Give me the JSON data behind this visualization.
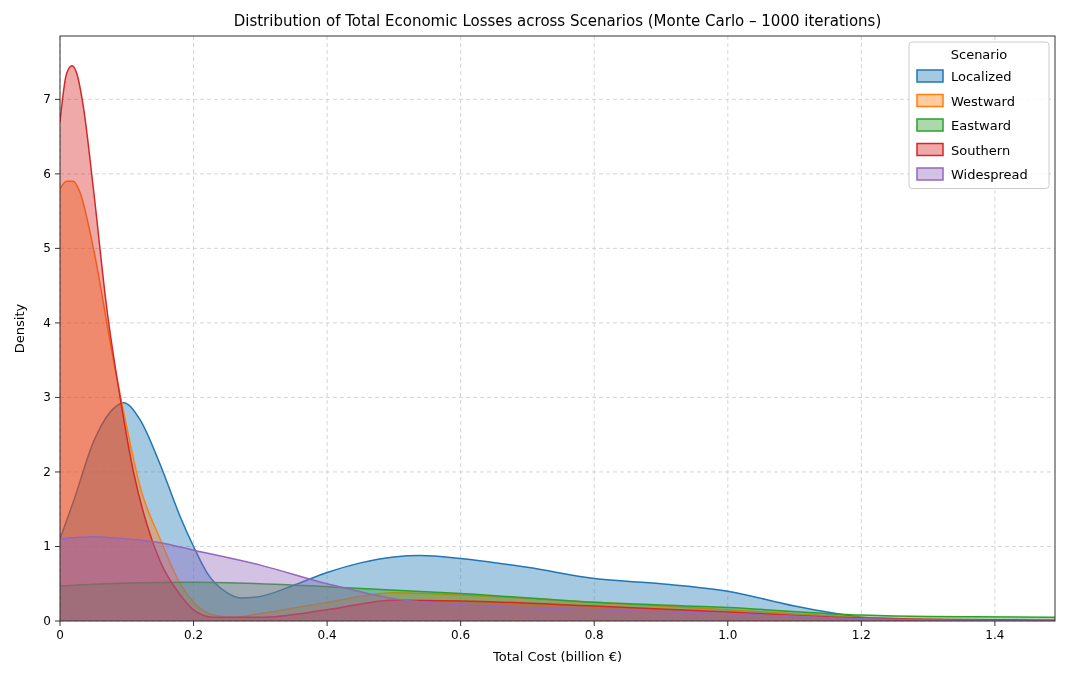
{
  "chart_data": {
    "type": "area",
    "title": "Distribution of Total Economic Losses across Scenarios (Monte Carlo – 1000 iterations)",
    "xlabel": "Total Cost (billion €)",
    "ylabel": "Density",
    "legend_title": "Scenario",
    "legend": "top right",
    "grid": true,
    "xlim": [
      0,
      1.49
    ],
    "xticks": [
      0,
      {
        "value": 0.2,
        "label": "0.2"
      },
      {
        "value": 0.4,
        "label": "0.4"
      },
      {
        "value": 0.6,
        "label": "0.6"
      },
      {
        "value": 0.8,
        "label": "0.8"
      },
      {
        "value": 1,
        "label": "1.0"
      },
      {
        "value": 1.2,
        "label": "1.2"
      },
      {
        "value": 1.4,
        "label": "1.4"
      }
    ],
    "ylim": [
      0,
      7.85
    ],
    "yticks": [
      0,
      1,
      2,
      3,
      4,
      5,
      6,
      7
    ],
    "series": [
      {
        "name": "Localized",
        "color": "#1f77b4",
        "x": [
          0,
          0.02,
          0.05,
          0.08,
          0.095,
          0.12,
          0.15,
          0.18,
          0.2,
          0.22,
          0.25,
          0.27,
          0.3,
          0.35,
          0.4,
          0.45,
          0.5,
          0.54,
          0.6,
          0.7,
          0.8,
          0.9,
          1.0,
          1.1,
          1.2,
          1.25,
          1.3,
          1.49
        ],
        "values": [
          1.1,
          1.6,
          2.4,
          2.85,
          2.93,
          2.7,
          2.1,
          1.4,
          1.0,
          0.65,
          0.38,
          0.31,
          0.33,
          0.48,
          0.65,
          0.78,
          0.86,
          0.88,
          0.84,
          0.72,
          0.57,
          0.5,
          0.4,
          0.2,
          0.05,
          0.01,
          0,
          0
        ]
      },
      {
        "name": "Westward",
        "color": "#ff7f0e",
        "x": [
          0,
          0.01,
          0.02,
          0.03,
          0.05,
          0.08,
          0.1,
          0.12,
          0.15,
          0.18,
          0.2,
          0.23,
          0.26,
          0.3,
          0.4,
          0.5,
          0.6,
          0.8,
          1.0,
          1.2,
          1.3,
          1.49
        ],
        "values": [
          5.8,
          5.9,
          5.9,
          5.75,
          5.0,
          3.5,
          2.6,
          1.8,
          1.1,
          0.5,
          0.25,
          0.08,
          0.05,
          0.1,
          0.25,
          0.38,
          0.35,
          0.25,
          0.15,
          0.05,
          0.02,
          0.01
        ]
      },
      {
        "name": "Eastward",
        "color": "#2ca02c",
        "x": [
          0,
          0.1,
          0.2,
          0.3,
          0.4,
          0.6,
          0.8,
          1.0,
          1.2,
          1.3,
          1.49
        ],
        "values": [
          0.47,
          0.51,
          0.52,
          0.5,
          0.46,
          0.37,
          0.25,
          0.18,
          0.08,
          0.06,
          0.05
        ]
      },
      {
        "name": "Southern",
        "color": "#d62728",
        "x": [
          0,
          0.01,
          0.018,
          0.025,
          0.035,
          0.05,
          0.07,
          0.09,
          0.11,
          0.13,
          0.15,
          0.18,
          0.2,
          0.23,
          0.3,
          0.4,
          0.5,
          0.6,
          0.8,
          1.0,
          1.2,
          1.49
        ],
        "values": [
          6.7,
          7.35,
          7.45,
          7.35,
          6.9,
          5.8,
          4.2,
          3.0,
          2.0,
          1.3,
          0.8,
          0.35,
          0.15,
          0.05,
          0.05,
          0.15,
          0.28,
          0.27,
          0.2,
          0.12,
          0.04,
          0.01
        ]
      },
      {
        "name": "Widespread",
        "color": "#9467bd",
        "x": [
          0,
          0.05,
          0.1,
          0.15,
          0.2,
          0.3,
          0.4,
          0.5,
          0.6,
          0.8,
          1.0,
          1.2,
          1.49
        ],
        "values": [
          1.1,
          1.13,
          1.1,
          1.05,
          0.95,
          0.75,
          0.5,
          0.3,
          0.22,
          0.15,
          0.1,
          0.03,
          0
        ]
      }
    ]
  }
}
